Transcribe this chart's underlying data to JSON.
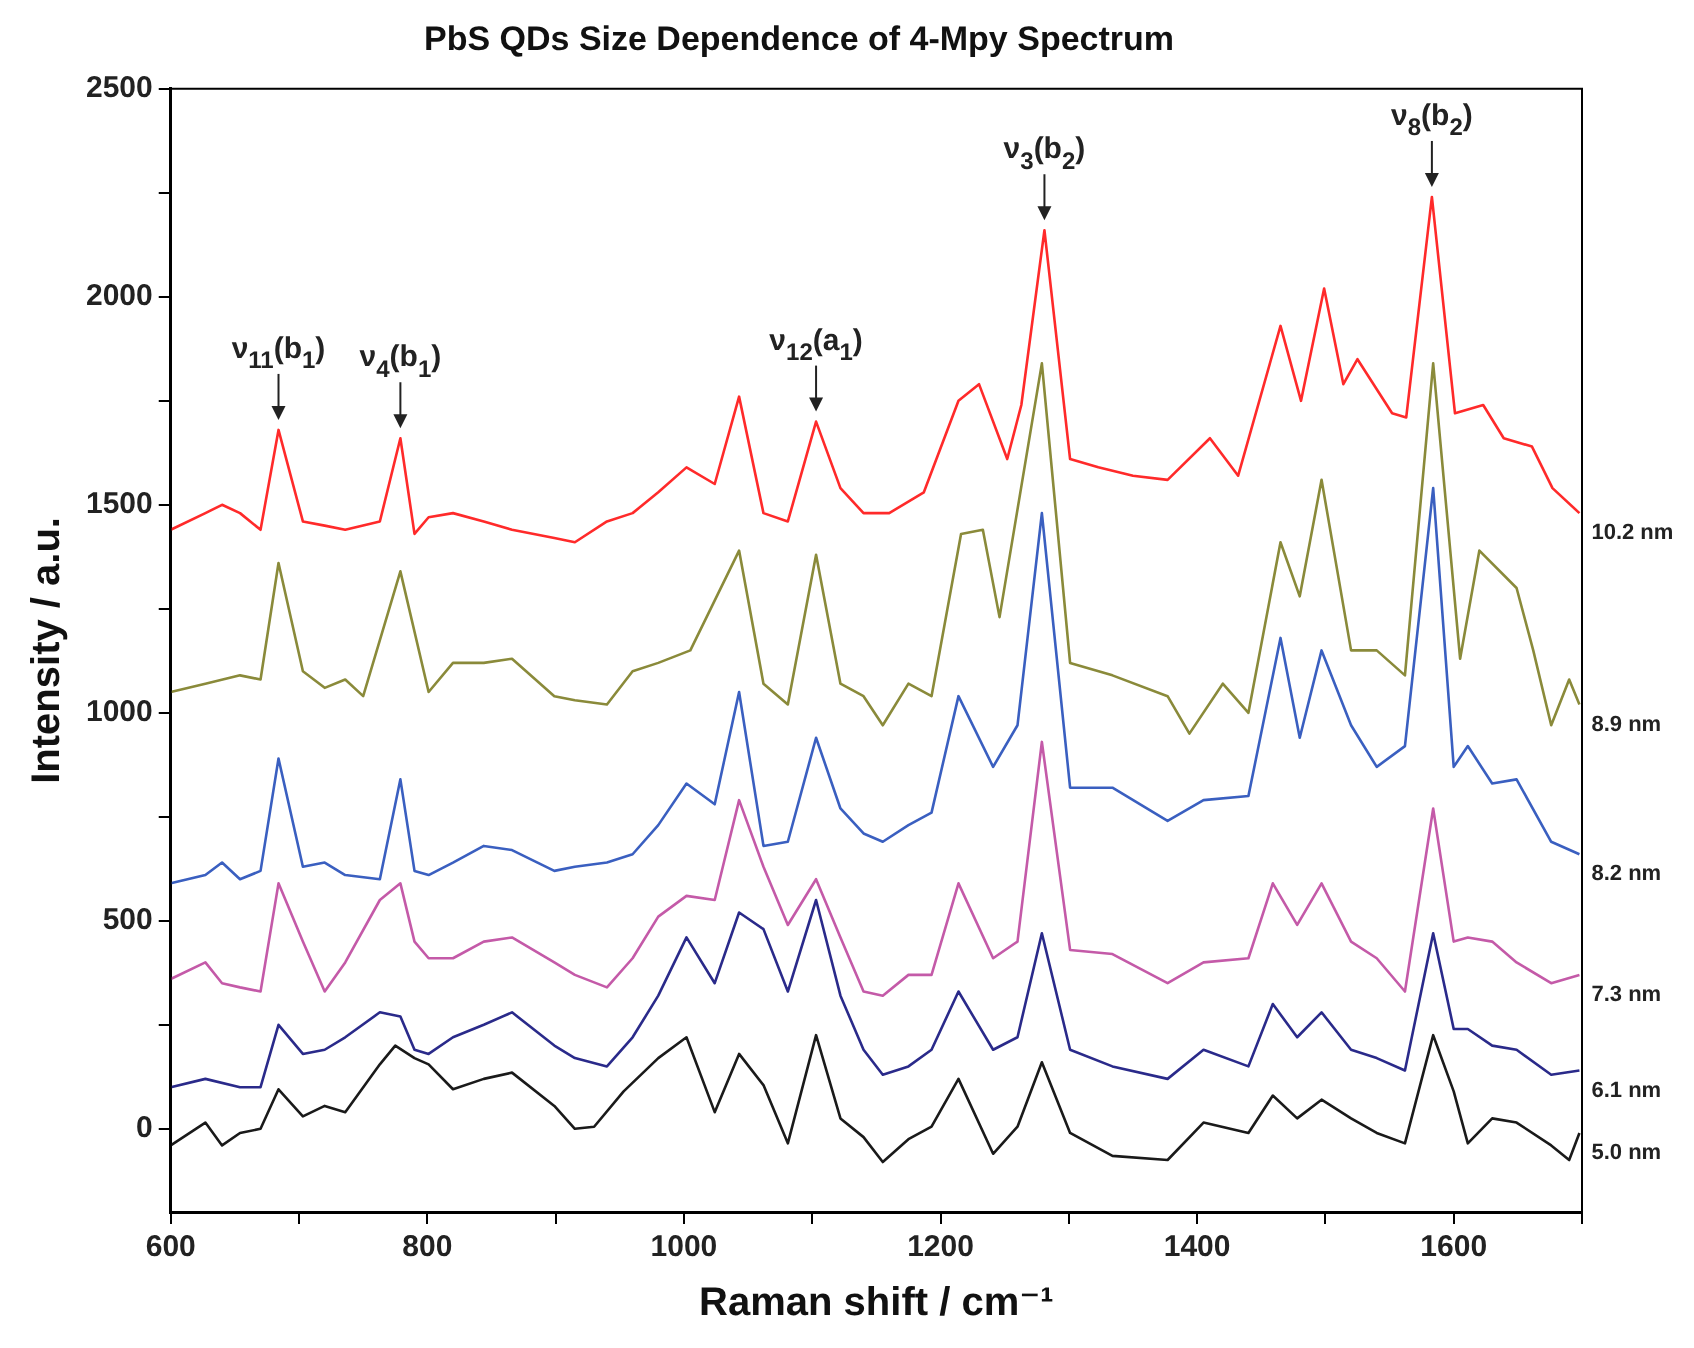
{
  "chart_data": {
    "type": "line",
    "title": "PbS QDs Size Dependence of 4-Mpy Spectrum",
    "xlabel": "Raman shift / cm⁻¹",
    "ylabel": "Intensity / a.u.",
    "xlim": [
      600,
      1700
    ],
    "ylim": [
      -200,
      2500
    ],
    "xticks": [
      600,
      {
        "value": 700,
        "label": null
      },
      800,
      {
        "value": 900,
        "label": null
      },
      1000,
      {
        "value": 1100,
        "label": null
      },
      1200,
      {
        "value": 1300,
        "label": null
      },
      1400,
      {
        "value": 1500,
        "label": null
      },
      1600,
      {
        "value": 1700,
        "label": null
      }
    ],
    "yticks": [
      0,
      {
        "value": 250,
        "label": null
      },
      500,
      {
        "value": 750,
        "label": null
      },
      1000,
      {
        "value": 1250,
        "label": null
      },
      1500,
      {
        "value": 1750,
        "label": null
      },
      2000,
      {
        "value": 2250,
        "label": null
      },
      2500
    ],
    "grid": false,
    "legend": false,
    "marker": "none",
    "line_style": "solid",
    "series": [
      {
        "name": "10.2 nm",
        "color": "#ff2a2a",
        "x": [
          600,
          627,
          640,
          654,
          670,
          684,
          703,
          720,
          736,
          763,
          779,
          790,
          801,
          820,
          844,
          866,
          899,
          915,
          940,
          960,
          980,
          1002,
          1024,
          1043,
          1062,
          1081,
          1103,
          1122,
          1140,
          1160,
          1187,
          1214,
          1230,
          1252,
          1263,
          1281,
          1301,
          1323,
          1350,
          1377,
          1410,
          1432,
          1465,
          1481,
          1499,
          1514,
          1525,
          1552,
          1563,
          1583,
          1601,
          1623,
          1639,
          1661,
          1677,
          1698
        ],
        "values": [
          1440,
          1480,
          1500,
          1480,
          1440,
          1680,
          1460,
          1450,
          1440,
          1460,
          1660,
          1430,
          1470,
          1480,
          1460,
          1440,
          1420,
          1410,
          1460,
          1480,
          1530,
          1590,
          1550,
          1760,
          1480,
          1460,
          1700,
          1540,
          1480,
          1480,
          1530,
          1750,
          1790,
          1610,
          1740,
          2160,
          1610,
          1590,
          1570,
          1560,
          1660,
          1570,
          1930,
          1750,
          2020,
          1790,
          1850,
          1720,
          1710,
          2240,
          1720,
          1740,
          1660,
          1640,
          1540,
          1480
        ]
      },
      {
        "name": "8.9 nm",
        "color": "#8a8a3a",
        "x": [
          600,
          627,
          654,
          670,
          684,
          703,
          720,
          736,
          750,
          779,
          801,
          820,
          844,
          866,
          899,
          915,
          940,
          960,
          980,
          1005,
          1043,
          1062,
          1081,
          1103,
          1122,
          1140,
          1155,
          1175,
          1193,
          1216,
          1233,
          1246,
          1279,
          1301,
          1334,
          1377,
          1394,
          1420,
          1440,
          1465,
          1480,
          1497,
          1520,
          1540,
          1562,
          1584,
          1605,
          1620,
          1649,
          1662,
          1676,
          1690,
          1698
        ],
        "values": [
          1050,
          1070,
          1090,
          1080,
          1360,
          1100,
          1060,
          1080,
          1040,
          1340,
          1050,
          1120,
          1120,
          1130,
          1040,
          1030,
          1020,
          1100,
          1120,
          1150,
          1390,
          1070,
          1020,
          1380,
          1070,
          1040,
          970,
          1070,
          1040,
          1430,
          1440,
          1230,
          1840,
          1120,
          1090,
          1040,
          950,
          1070,
          1000,
          1410,
          1280,
          1560,
          1150,
          1150,
          1090,
          1840,
          1130,
          1390,
          1300,
          1150,
          970,
          1080,
          1020
        ]
      },
      {
        "name": "8.2 nm",
        "color": "#3a5fc0",
        "x": [
          600,
          627,
          640,
          654,
          670,
          684,
          703,
          720,
          736,
          763,
          779,
          790,
          801,
          820,
          844,
          866,
          899,
          915,
          940,
          960,
          980,
          1002,
          1024,
          1043,
          1062,
          1081,
          1103,
          1122,
          1140,
          1155,
          1175,
          1193,
          1214,
          1241,
          1260,
          1279,
          1301,
          1334,
          1377,
          1405,
          1440,
          1465,
          1480,
          1497,
          1520,
          1540,
          1562,
          1584,
          1600,
          1611,
          1630,
          1649,
          1676,
          1698
        ],
        "values": [
          590,
          610,
          640,
          600,
          620,
          890,
          630,
          640,
          610,
          600,
          840,
          620,
          610,
          640,
          680,
          670,
          620,
          630,
          640,
          660,
          730,
          830,
          780,
          1050,
          680,
          690,
          940,
          770,
          710,
          690,
          730,
          760,
          1040,
          870,
          970,
          1480,
          820,
          820,
          740,
          790,
          800,
          1180,
          940,
          1150,
          970,
          870,
          920,
          1540,
          870,
          920,
          830,
          840,
          690,
          660
        ]
      },
      {
        "name": "7.3 nm",
        "color": "#c45aa8",
        "x": [
          600,
          627,
          640,
          654,
          670,
          684,
          703,
          720,
          736,
          763,
          779,
          790,
          801,
          820,
          844,
          866,
          899,
          915,
          940,
          960,
          980,
          1002,
          1024,
          1043,
          1062,
          1081,
          1103,
          1122,
          1140,
          1155,
          1175,
          1193,
          1214,
          1241,
          1260,
          1279,
          1301,
          1334,
          1377,
          1405,
          1440,
          1459,
          1478,
          1497,
          1520,
          1540,
          1562,
          1584,
          1600,
          1611,
          1630,
          1649,
          1676,
          1698
        ],
        "values": [
          360,
          400,
          350,
          340,
          330,
          590,
          450,
          330,
          400,
          550,
          590,
          450,
          410,
          410,
          450,
          460,
          400,
          370,
          340,
          410,
          510,
          560,
          550,
          790,
          630,
          490,
          600,
          460,
          330,
          320,
          370,
          370,
          590,
          410,
          450,
          930,
          430,
          420,
          350,
          400,
          410,
          590,
          490,
          590,
          450,
          410,
          330,
          770,
          450,
          460,
          450,
          400,
          350,
          370
        ]
      },
      {
        "name": "6.1 nm",
        "color": "#2a2a8a",
        "x": [
          600,
          627,
          654,
          670,
          684,
          703,
          720,
          736,
          763,
          779,
          790,
          801,
          820,
          844,
          866,
          899,
          915,
          940,
          960,
          980,
          1002,
          1024,
          1043,
          1062,
          1081,
          1103,
          1122,
          1140,
          1155,
          1175,
          1193,
          1214,
          1241,
          1260,
          1279,
          1301,
          1334,
          1377,
          1405,
          1440,
          1459,
          1478,
          1497,
          1520,
          1540,
          1562,
          1584,
          1600,
          1611,
          1630,
          1649,
          1676,
          1698
        ],
        "values": [
          100,
          120,
          100,
          100,
          250,
          180,
          190,
          220,
          280,
          270,
          190,
          180,
          220,
          250,
          280,
          200,
          170,
          150,
          220,
          320,
          460,
          350,
          520,
          480,
          330,
          550,
          320,
          190,
          130,
          150,
          190,
          330,
          190,
          220,
          470,
          190,
          150,
          120,
          190,
          150,
          300,
          220,
          280,
          190,
          170,
          140,
          470,
          240,
          240,
          200,
          190,
          130,
          140
        ]
      },
      {
        "name": "5.0 nm",
        "color": "#1a1a1a",
        "x": [
          600,
          627,
          640,
          654,
          670,
          684,
          703,
          720,
          736,
          763,
          775,
          790,
          801,
          820,
          844,
          866,
          899,
          915,
          930,
          953,
          980,
          1002,
          1024,
          1043,
          1062,
          1081,
          1103,
          1122,
          1140,
          1155,
          1175,
          1193,
          1214,
          1241,
          1260,
          1279,
          1301,
          1334,
          1377,
          1405,
          1440,
          1459,
          1478,
          1497,
          1520,
          1540,
          1562,
          1584,
          1600,
          1611,
          1630,
          1649,
          1676,
          1690,
          1698
        ],
        "values": [
          -40,
          15,
          -40,
          -10,
          0,
          95,
          30,
          55,
          40,
          155,
          200,
          170,
          155,
          95,
          120,
          135,
          55,
          0,
          5,
          90,
          170,
          220,
          40,
          180,
          105,
          -35,
          225,
          25,
          -20,
          -80,
          -25,
          5,
          120,
          -60,
          5,
          160,
          -10,
          -65,
          -75,
          15,
          -10,
          80,
          25,
          70,
          25,
          -10,
          -35,
          225,
          90,
          -35,
          25,
          15,
          -40,
          -75,
          -10
        ]
      }
    ],
    "annotations": [
      {
        "text": "ν$_{11}$(b$_{1}$)",
        "x": 684,
        "y": 1680
      },
      {
        "text": "ν$_{4}$(b$_{1}$)",
        "x": 779,
        "y": 1660
      },
      {
        "text": "ν$_{12}$(a$_{1}$)",
        "x": 1103,
        "y": 1700
      },
      {
        "text": "ν$_{3}$(b$_{2}$)",
        "x": 1281,
        "y": 2160
      },
      {
        "text": "ν$_{8}$(b$_{2}$)",
        "x": 1583,
        "y": 2240
      }
    ]
  }
}
